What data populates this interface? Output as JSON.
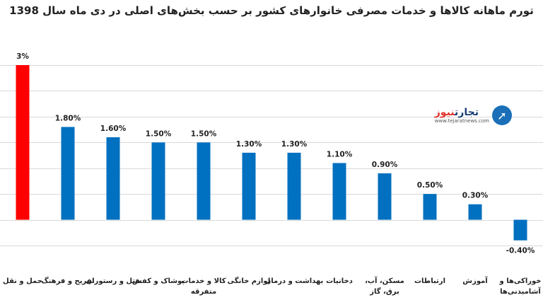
{
  "chart_data": {
    "type": "bar",
    "title": "تورم ماهانه کالاها و خدمات مصرفی خانوارهای کشور بر حسب بخش‌های اصلی در دی ماه سال 1398",
    "categories": [
      "حمل و نقل",
      "تفریح و فرهنگ",
      "هتل و رستوران",
      "پوشاک و کفش",
      "کالا و خدمات متفرقه",
      "لوازم خانگی",
      "بهداشت و درمان",
      "دخانیات",
      "مسکن، آب، برق، گاز",
      "ارتباطات",
      "آموزش",
      "خوراکی‌ها و آشامیدنی‌ها"
    ],
    "category_lines": [
      [
        "حمل و نقل"
      ],
      [
        "تفریح و فرهنگ"
      ],
      [
        "هتل و رستوران"
      ],
      [
        "پوشاک و کفش"
      ],
      [
        "کالا و خدمات",
        "متفرقه"
      ],
      [
        "لوازم خانگی"
      ],
      [
        "بهداشت و درمان"
      ],
      [
        "دخانیات"
      ],
      [
        "مسکن، آب،",
        "برق، گاز"
      ],
      [
        "ارتباطات"
      ],
      [
        "آموزش"
      ],
      [
        "خوراکی‌ها و",
        "آشامیدنی‌ها"
      ]
    ],
    "values": [
      3.0,
      1.8,
      1.6,
      1.5,
      1.5,
      1.3,
      1.3,
      1.1,
      0.9,
      0.5,
      0.3,
      -0.4
    ],
    "data_labels": [
      "3%",
      "1.80%",
      "1.60%",
      "1.50%",
      "1.50%",
      "1.30%",
      "1.30%",
      "1.10%",
      "0.90%",
      "0.50%",
      "0.30%",
      "-0.40%"
    ],
    "ylim": [
      -0.5,
      3.0
    ],
    "grid": true,
    "highlight_index": 0
  },
  "colors": {
    "bar": "#0070c0",
    "highlight": "#ff0000",
    "grid": "#d9d9d9",
    "text": "#222222"
  },
  "logo": {
    "name_main": "تجارت",
    "name_accent": "نیوز",
    "url": "www.tejaratnews.com"
  }
}
